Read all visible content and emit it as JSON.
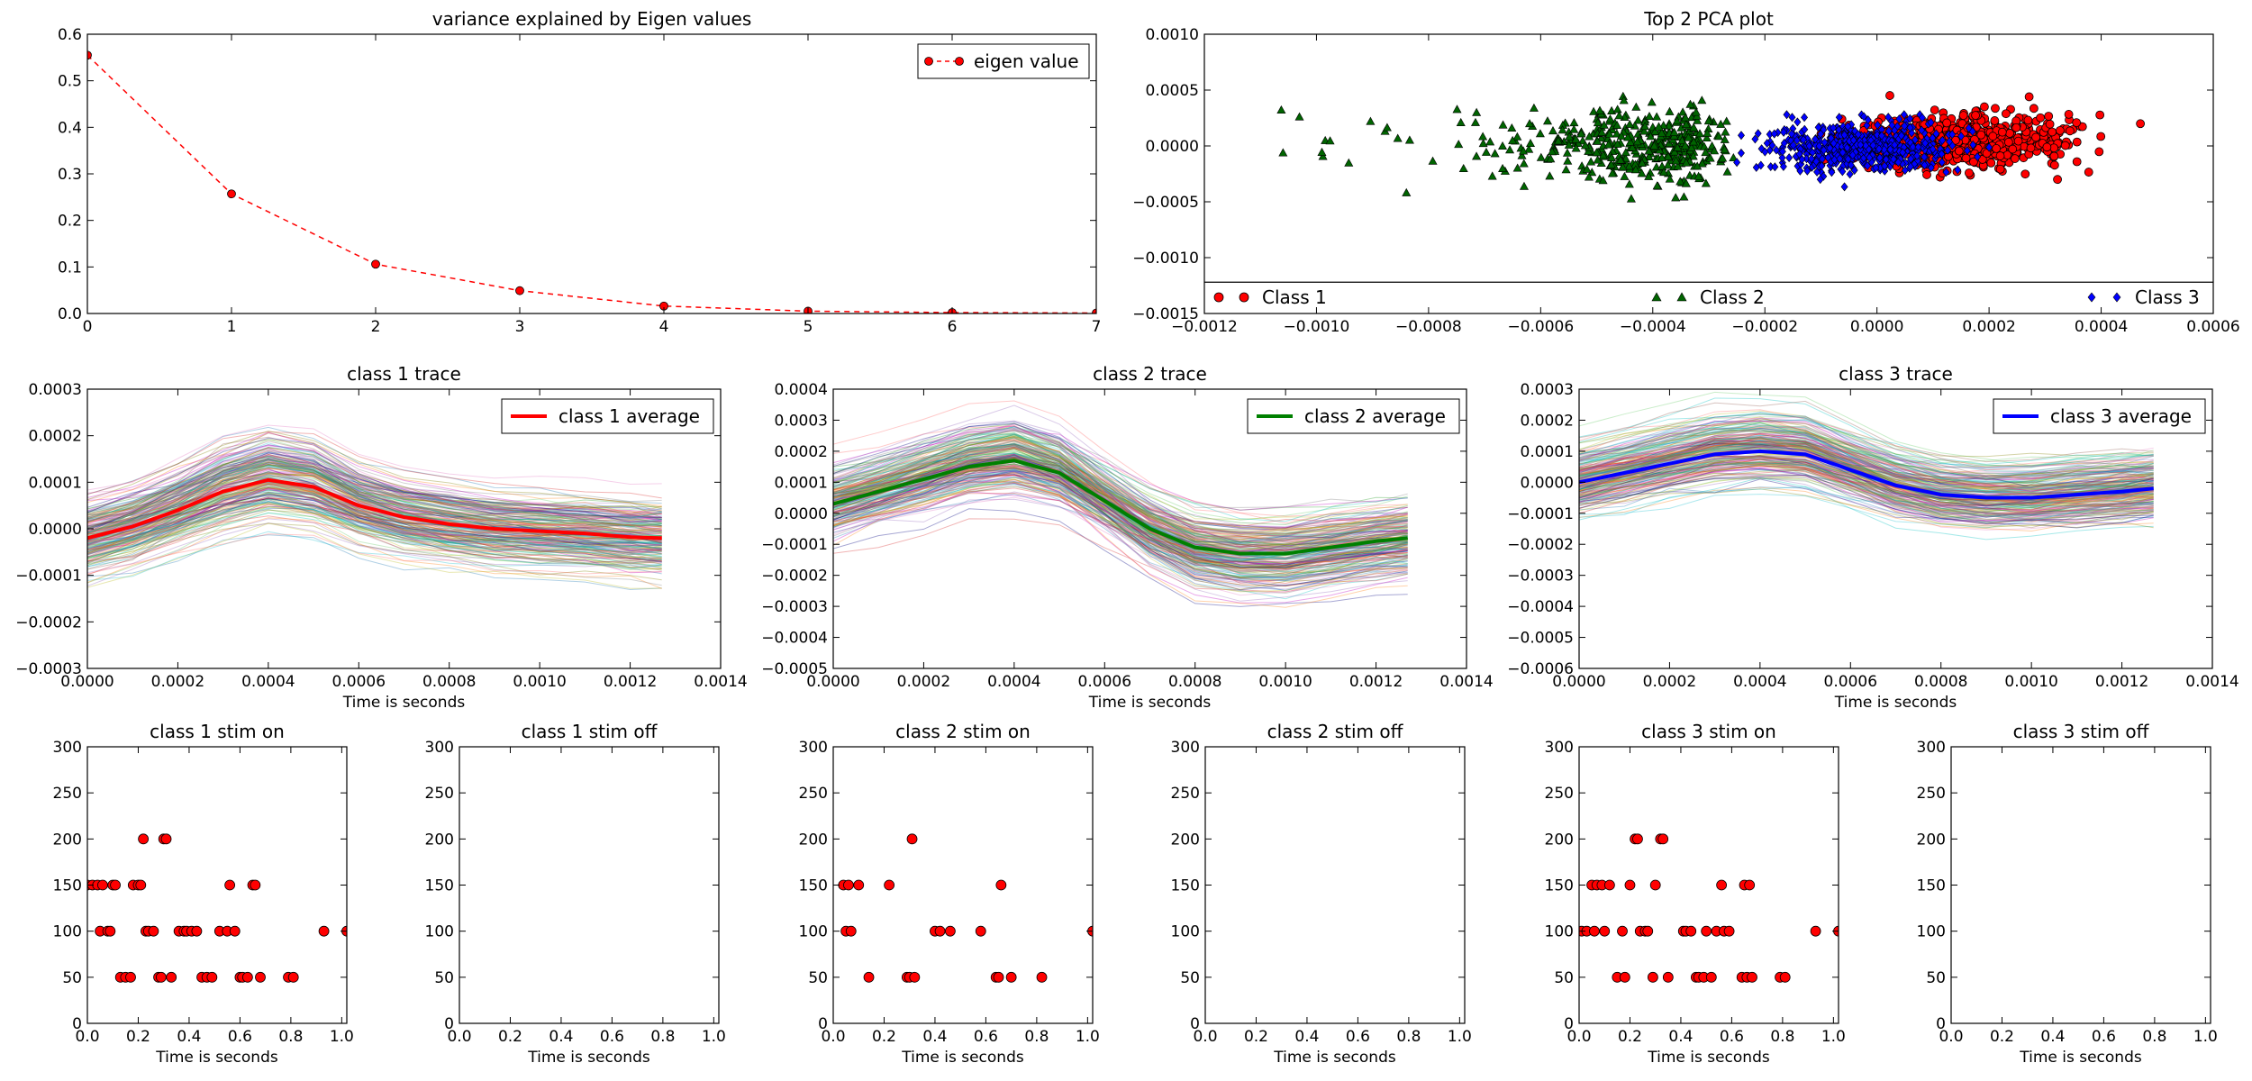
{
  "figure": {
    "title": ""
  },
  "chart_data": [
    {
      "id": "eigen",
      "type": "line",
      "title": "variance explained by Eigen values",
      "xlabel": "",
      "ylabel": "",
      "xlim": [
        0,
        7
      ],
      "ylim": [
        0,
        0.6
      ],
      "xticks": [
        "0",
        "1",
        "2",
        "3",
        "4",
        "5",
        "6",
        "7"
      ],
      "xtick_values": [
        0,
        1,
        2,
        3,
        4,
        5,
        6,
        7
      ],
      "yticks": [
        "0.0",
        "0.1",
        "0.2",
        "0.3",
        "0.4",
        "0.5",
        "0.6"
      ],
      "ytick_values": [
        0,
        0.1,
        0.2,
        0.3,
        0.4,
        0.5,
        0.6
      ],
      "legend": {
        "position": "top-right",
        "entries": [
          "eigen value"
        ]
      },
      "series": [
        {
          "name": "eigen value",
          "color": "#ff0000",
          "style": "dashed-with-circles",
          "x": [
            0,
            1,
            2,
            3,
            4,
            5,
            6,
            7
          ],
          "y": [
            0.555,
            0.257,
            0.106,
            0.049,
            0.016,
            0.005,
            0.002,
            0.001
          ]
        }
      ]
    },
    {
      "id": "pca",
      "type": "scatter",
      "title": "Top 2 PCA plot",
      "xlabel": "",
      "ylabel": "",
      "xlim": [
        -0.0012,
        0.0006
      ],
      "ylim": [
        -0.0015,
        0.001
      ],
      "xticks": [
        "−0.0012",
        "−0.0010",
        "−0.0008",
        "−0.0006",
        "−0.0004",
        "−0.0002",
        "0.0000",
        "0.0002",
        "0.0004",
        "0.0006"
      ],
      "xtick_values": [
        -0.0012,
        -0.001,
        -0.0008,
        -0.0006,
        -0.0004,
        -0.0002,
        0,
        0.0002,
        0.0004,
        0.0006
      ],
      "yticks": [
        "−0.0015",
        "−0.0010",
        "−0.0005",
        "0.0000",
        "0.0005",
        "0.0010"
      ],
      "ytick_values": [
        -0.0015,
        -0.001,
        -0.0005,
        0,
        0.0005,
        0.001
      ],
      "legend": {
        "position": "bottom",
        "entries": [
          "Class 1",
          "Class 2",
          "Class 3"
        ]
      },
      "series": [
        {
          "name": "Class 1",
          "color": "#ff0000",
          "marker": "circle",
          "x_range": [
            -0.0001,
            0.00047
          ],
          "y_range": [
            -0.0003,
            0.00068
          ],
          "center": [
            0.00015,
            5e-05
          ]
        },
        {
          "name": "Class 2",
          "color": "#006400",
          "marker": "triangle",
          "x_range": [
            -0.00107,
            -0.0001
          ],
          "y_range": [
            -0.00062,
            0.00068
          ],
          "center": [
            -0.0003,
            0.0
          ]
        },
        {
          "name": "Class 3",
          "color": "#0000ff",
          "marker": "diamond",
          "x_range": [
            -0.00025,
            0.0002
          ],
          "y_range": [
            -0.0005,
            0.00028
          ],
          "center": [
            -3e-05,
            -2e-05
          ]
        }
      ]
    },
    {
      "id": "trace1",
      "type": "line",
      "title": "class 1 trace",
      "xlabel": "Time is seconds",
      "ylabel": "",
      "xlim": [
        0,
        0.0014
      ],
      "ylim": [
        -0.0003,
        0.0003
      ],
      "xticks": [
        "0.0000",
        "0.0002",
        "0.0004",
        "0.0006",
        "0.0008",
        "0.0010",
        "0.0012",
        "0.0014"
      ],
      "xtick_values": [
        0,
        0.0002,
        0.0004,
        0.0006,
        0.0008,
        0.001,
        0.0012,
        0.0014
      ],
      "yticks": [
        "−0.0003",
        "−0.0002",
        "−0.0001",
        "0.0000",
        "0.0001",
        "0.0002",
        "0.0003"
      ],
      "ytick_values": [
        -0.0003,
        -0.0002,
        -0.0001,
        0,
        0.0001,
        0.0002,
        0.0003
      ],
      "legend": {
        "position": "top-right",
        "entries": [
          "class 1 average"
        ]
      },
      "series": [
        {
          "name": "class 1 average",
          "color": "#ff0000",
          "x": [
            0,
            0.0001,
            0.0002,
            0.0003,
            0.0004,
            0.0005,
            0.0006,
            0.0007,
            0.0008,
            0.0009,
            0.001,
            0.0011,
            0.0012,
            0.00127
          ],
          "y": [
            -2e-05,
            5e-06,
            4e-05,
            8e-05,
            0.000105,
            9e-05,
            5e-05,
            2.5e-05,
            1e-05,
            0.0,
            -5e-06,
            -1e-05,
            -1.8e-05,
            -2e-05
          ]
        }
      ]
    },
    {
      "id": "trace2",
      "type": "line",
      "title": "class 2 trace",
      "xlabel": "Time is seconds",
      "ylabel": "",
      "xlim": [
        0,
        0.0014
      ],
      "ylim": [
        -0.0005,
        0.0004
      ],
      "xticks": [
        "0.0000",
        "0.0002",
        "0.0004",
        "0.0006",
        "0.0008",
        "0.0010",
        "0.0012",
        "0.0014"
      ],
      "xtick_values": [
        0,
        0.0002,
        0.0004,
        0.0006,
        0.0008,
        0.001,
        0.0012,
        0.0014
      ],
      "yticks": [
        "−0.0005",
        "−0.0004",
        "−0.0003",
        "−0.0002",
        "−0.0001",
        "0.0000",
        "0.0001",
        "0.0002",
        "0.0003",
        "0.0004"
      ],
      "ytick_values": [
        -0.0005,
        -0.0004,
        -0.0003,
        -0.0002,
        -0.0001,
        0,
        0.0001,
        0.0002,
        0.0003,
        0.0004
      ],
      "legend": {
        "position": "top-right",
        "entries": [
          "class 2 average"
        ]
      },
      "series": [
        {
          "name": "class 2 average",
          "color": "#008000",
          "x": [
            0,
            0.0001,
            0.0002,
            0.0003,
            0.0004,
            0.0005,
            0.0006,
            0.0007,
            0.0008,
            0.0009,
            0.001,
            0.0011,
            0.0012,
            0.00127
          ],
          "y": [
            3e-05,
            7e-05,
            0.00011,
            0.00015,
            0.00017,
            0.00013,
            4e-05,
            -5e-05,
            -0.00011,
            -0.00013,
            -0.00013,
            -0.00011,
            -9e-05,
            -8e-05
          ]
        }
      ]
    },
    {
      "id": "trace3",
      "type": "line",
      "title": "class 3 trace",
      "xlabel": "Time is seconds",
      "ylabel": "",
      "xlim": [
        0,
        0.0014
      ],
      "ylim": [
        -0.0006,
        0.0003
      ],
      "xticks": [
        "0.0000",
        "0.0002",
        "0.0004",
        "0.0006",
        "0.0008",
        "0.0010",
        "0.0012",
        "0.0014"
      ],
      "xtick_values": [
        0,
        0.0002,
        0.0004,
        0.0006,
        0.0008,
        0.001,
        0.0012,
        0.0014
      ],
      "yticks": [
        "−0.0006",
        "−0.0005",
        "−0.0004",
        "−0.0003",
        "−0.0002",
        "−0.0001",
        "0.0000",
        "0.0001",
        "0.0002",
        "0.0003"
      ],
      "ytick_values": [
        -0.0006,
        -0.0005,
        -0.0004,
        -0.0003,
        -0.0002,
        -0.0001,
        0,
        0.0001,
        0.0002,
        0.0003
      ],
      "legend": {
        "position": "top-right",
        "entries": [
          "class 3 average"
        ]
      },
      "series": [
        {
          "name": "class 3 average",
          "color": "#0000ff",
          "x": [
            0,
            0.0001,
            0.0002,
            0.0003,
            0.0004,
            0.0005,
            0.0006,
            0.0007,
            0.0008,
            0.0009,
            0.001,
            0.0011,
            0.0012,
            0.00127
          ],
          "y": [
            0.0,
            3e-05,
            6e-05,
            9e-05,
            0.0001,
            9e-05,
            4e-05,
            -1e-05,
            -4e-05,
            -5e-05,
            -5e-05,
            -4e-05,
            -3e-05,
            -2e-05
          ]
        }
      ]
    },
    {
      "id": "stim1on",
      "type": "scatter",
      "title": "class 1 stim on",
      "xlabel": "Time is seconds",
      "ylabel": "",
      "xlim": [
        0,
        1.02
      ],
      "ylim": [
        0,
        300
      ],
      "xticks": [
        "0.0",
        "0.2",
        "0.4",
        "0.6",
        "0.8",
        "1.0"
      ],
      "xtick_values": [
        0,
        0.2,
        0.4,
        0.6,
        0.8,
        1.0
      ],
      "yticks": [
        "0",
        "50",
        "100",
        "150",
        "200",
        "250",
        "300"
      ],
      "ytick_values": [
        0,
        50,
        100,
        150,
        200,
        250,
        300
      ],
      "series": [
        {
          "name": "",
          "color": "#ff0000",
          "x": [
            0.0,
            0.02,
            0.04,
            0.05,
            0.06,
            0.08,
            0.09,
            0.1,
            0.11,
            0.13,
            0.15,
            0.17,
            0.18,
            0.2,
            0.21,
            0.22,
            0.23,
            0.24,
            0.26,
            0.28,
            0.29,
            0.3,
            0.31,
            0.33,
            0.36,
            0.38,
            0.39,
            0.41,
            0.43,
            0.45,
            0.47,
            0.49,
            0.52,
            0.55,
            0.56,
            0.58,
            0.6,
            0.61,
            0.63,
            0.65,
            0.66,
            0.68,
            0.79,
            0.81,
            0.93,
            1.02
          ],
          "y": [
            150,
            150,
            150,
            100,
            150,
            100,
            100,
            150,
            150,
            50,
            50,
            50,
            150,
            150,
            150,
            200,
            100,
            100,
            100,
            50,
            50,
            200,
            200,
            50,
            100,
            100,
            100,
            100,
            100,
            50,
            50,
            50,
            100,
            100,
            150,
            100,
            50,
            50,
            50,
            150,
            150,
            50,
            50,
            50,
            100,
            100
          ]
        }
      ]
    },
    {
      "id": "stim1off",
      "type": "scatter",
      "title": "class 1 stim off",
      "xlabel": "Time is seconds",
      "ylabel": "",
      "xlim": [
        0,
        1.02
      ],
      "ylim": [
        0,
        300
      ],
      "xticks": [
        "0.0",
        "0.2",
        "0.4",
        "0.6",
        "0.8",
        "1.0"
      ],
      "xtick_values": [
        0,
        0.2,
        0.4,
        0.6,
        0.8,
        1.0
      ],
      "yticks": [
        "0",
        "50",
        "100",
        "150",
        "200",
        "250",
        "300"
      ],
      "ytick_values": [
        0,
        50,
        100,
        150,
        200,
        250,
        300
      ],
      "series": []
    },
    {
      "id": "stim2on",
      "type": "scatter",
      "title": "class 2 stim on",
      "xlabel": "Time is seconds",
      "ylabel": "",
      "xlim": [
        0,
        1.02
      ],
      "ylim": [
        0,
        300
      ],
      "xticks": [
        "0.0",
        "0.2",
        "0.4",
        "0.6",
        "0.8",
        "1.0"
      ],
      "xtick_values": [
        0,
        0.2,
        0.4,
        0.6,
        0.8,
        1.0
      ],
      "yticks": [
        "0",
        "50",
        "100",
        "150",
        "200",
        "250",
        "300"
      ],
      "ytick_values": [
        0,
        50,
        100,
        150,
        200,
        250,
        300
      ],
      "series": [
        {
          "name": "",
          "color": "#ff0000",
          "x": [
            0.04,
            0.05,
            0.06,
            0.07,
            0.1,
            0.14,
            0.22,
            0.29,
            0.3,
            0.31,
            0.32,
            0.4,
            0.42,
            0.46,
            0.58,
            0.64,
            0.65,
            0.66,
            0.7,
            0.82,
            1.02
          ],
          "y": [
            150,
            100,
            150,
            100,
            150,
            50,
            150,
            50,
            50,
            200,
            50,
            100,
            100,
            100,
            100,
            50,
            50,
            150,
            50,
            50,
            100
          ]
        }
      ]
    },
    {
      "id": "stim2off",
      "type": "scatter",
      "title": "class 2 stim off",
      "xlabel": "Time is seconds",
      "ylabel": "",
      "xlim": [
        0,
        1.02
      ],
      "ylim": [
        0,
        300
      ],
      "xticks": [
        "0.0",
        "0.2",
        "0.4",
        "0.6",
        "0.8",
        "1.0"
      ],
      "xtick_values": [
        0,
        0.2,
        0.4,
        0.6,
        0.8,
        1.0
      ],
      "yticks": [
        "0",
        "50",
        "100",
        "150",
        "200",
        "250",
        "300"
      ],
      "ytick_values": [
        0,
        50,
        100,
        150,
        200,
        250,
        300
      ],
      "series": []
    },
    {
      "id": "stim3on",
      "type": "scatter",
      "title": "class 3 stim on",
      "xlabel": "Time is seconds",
      "ylabel": "",
      "xlim": [
        0,
        1.02
      ],
      "ylim": [
        0,
        300
      ],
      "xticks": [
        "0.0",
        "0.2",
        "0.4",
        "0.6",
        "0.8",
        "1.0"
      ],
      "xtick_values": [
        0,
        0.2,
        0.4,
        0.6,
        0.8,
        1.0
      ],
      "yticks": [
        "0",
        "50",
        "100",
        "150",
        "200",
        "250",
        "300"
      ],
      "ytick_values": [
        0,
        50,
        100,
        150,
        200,
        250,
        300
      ],
      "series": [
        {
          "name": "",
          "color": "#ff0000",
          "x": [
            0.01,
            0.03,
            0.05,
            0.06,
            0.07,
            0.09,
            0.1,
            0.12,
            0.15,
            0.17,
            0.18,
            0.2,
            0.22,
            0.23,
            0.24,
            0.26,
            0.27,
            0.29,
            0.3,
            0.32,
            0.33,
            0.35,
            0.41,
            0.42,
            0.44,
            0.46,
            0.47,
            0.49,
            0.5,
            0.52,
            0.54,
            0.56,
            0.57,
            0.59,
            0.64,
            0.65,
            0.66,
            0.67,
            0.68,
            0.79,
            0.81,
            0.93,
            1.02
          ],
          "y": [
            100,
            100,
            150,
            100,
            150,
            150,
            100,
            150,
            50,
            100,
            50,
            150,
            200,
            200,
            100,
            100,
            100,
            50,
            150,
            200,
            200,
            50,
            100,
            100,
            100,
            50,
            50,
            50,
            100,
            50,
            100,
            150,
            100,
            100,
            50,
            150,
            50,
            150,
            50,
            50,
            50,
            100,
            100
          ]
        }
      ]
    },
    {
      "id": "stim3off",
      "type": "scatter",
      "title": "class 3 stim off",
      "xlabel": "Time is seconds",
      "ylabel": "",
      "xlim": [
        0,
        1.02
      ],
      "ylim": [
        0,
        300
      ],
      "xticks": [
        "0.0",
        "0.2",
        "0.4",
        "0.6",
        "0.8",
        "1.0"
      ],
      "xtick_values": [
        0,
        0.2,
        0.4,
        0.6,
        0.8,
        1.0
      ],
      "yticks": [
        "0",
        "50",
        "100",
        "150",
        "200",
        "250",
        "300"
      ],
      "ytick_values": [
        0,
        50,
        100,
        150,
        200,
        250,
        300
      ],
      "series": []
    }
  ]
}
